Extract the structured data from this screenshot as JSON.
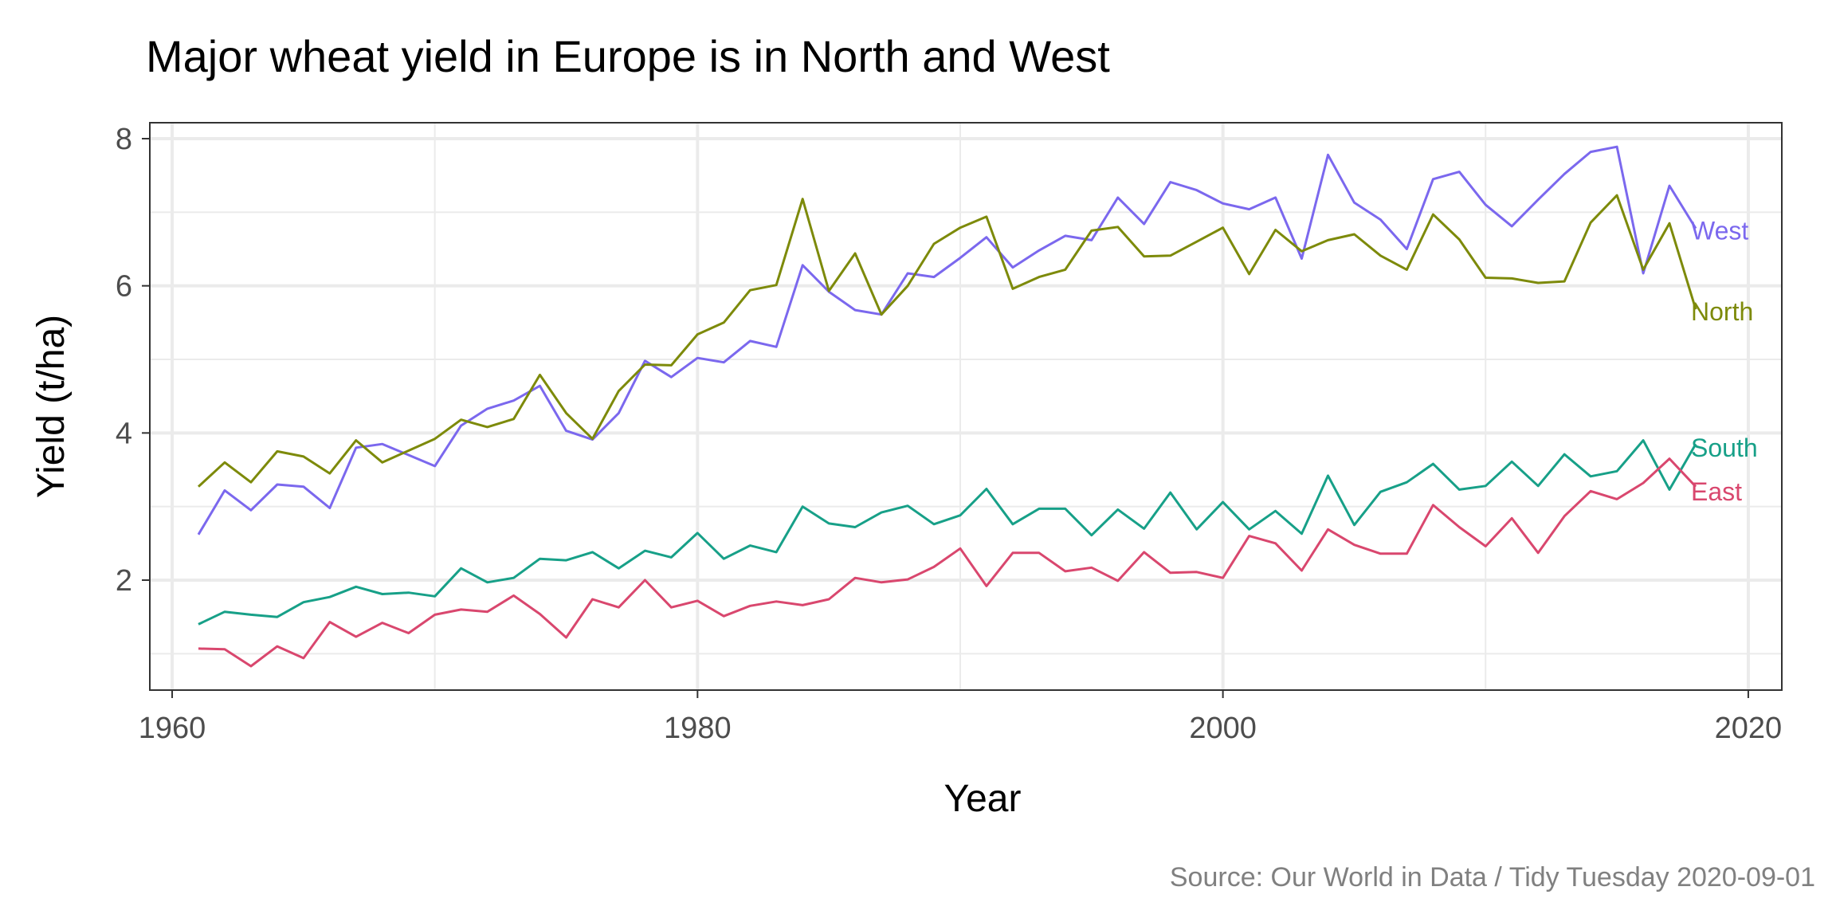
{
  "chart_data": {
    "type": "line",
    "title": "Major wheat yield in Europe is in North and West",
    "xlabel": "Year",
    "ylabel": "Yield (t/ha)",
    "caption": "Source: Our World in Data / Tidy Tuesday 2020-09-01",
    "xlim": [
      1958,
      2024
    ],
    "ylim": [
      0.5,
      8.25
    ],
    "xticks": [
      1960,
      1980,
      2000,
      2020
    ],
    "xtick_labels": [
      "1960",
      "1980",
      "2000",
      "2020"
    ],
    "yticks": [
      2,
      4,
      6,
      8
    ],
    "ytick_labels": [
      "2",
      "4",
      "6",
      "8"
    ],
    "grid": true,
    "legend": "direct labels at right end of lines",
    "x": [
      1961,
      1962,
      1963,
      1964,
      1965,
      1966,
      1967,
      1968,
      1969,
      1970,
      1971,
      1972,
      1973,
      1974,
      1975,
      1976,
      1977,
      1978,
      1979,
      1980,
      1981,
      1982,
      1983,
      1984,
      1985,
      1986,
      1987,
      1988,
      1989,
      1990,
      1991,
      1992,
      1993,
      1994,
      1995,
      1996,
      1997,
      1998,
      1999,
      2000,
      2001,
      2002,
      2003,
      2004,
      2005,
      2006,
      2007,
      2008,
      2009,
      2010,
      2011,
      2012,
      2013,
      2014,
      2015,
      2016,
      2017,
      2018
    ],
    "series": [
      {
        "name": "West",
        "color": "#7b68ee",
        "values": [
          2.62,
          3.22,
          2.95,
          3.3,
          3.27,
          2.98,
          3.8,
          3.85,
          3.7,
          3.55,
          4.1,
          4.33,
          4.44,
          4.64,
          4.03,
          3.91,
          4.27,
          4.98,
          4.76,
          5.02,
          4.96,
          5.25,
          5.17,
          6.28,
          5.92,
          5.67,
          5.61,
          6.17,
          6.12,
          6.38,
          6.66,
          6.25,
          6.48,
          6.68,
          6.62,
          7.2,
          6.84,
          7.41,
          7.3,
          7.12,
          7.04,
          7.2,
          6.37,
          7.78,
          7.13,
          6.9,
          6.5,
          7.45,
          7.55,
          7.1,
          6.81,
          7.17,
          7.52,
          7.82,
          7.89,
          6.17,
          7.36,
          6.78
        ]
      },
      {
        "name": "North",
        "color": "#7d8a0a",
        "values": [
          3.27,
          3.6,
          3.33,
          3.75,
          3.68,
          3.45,
          3.9,
          3.6,
          3.76,
          3.92,
          4.18,
          4.08,
          4.19,
          4.79,
          4.27,
          3.92,
          4.57,
          4.93,
          4.92,
          5.34,
          5.5,
          5.94,
          6.01,
          7.18,
          5.93,
          6.44,
          5.61,
          6.0,
          6.57,
          6.79,
          6.94,
          5.96,
          6.12,
          6.22,
          6.75,
          6.8,
          6.4,
          6.41,
          6.6,
          6.79,
          6.16,
          6.76,
          6.47,
          6.62,
          6.7,
          6.41,
          6.22,
          6.97,
          6.63,
          6.11,
          6.1,
          6.04,
          6.06,
          6.86,
          7.23,
          6.22,
          6.85,
          5.68
        ]
      },
      {
        "name": "South",
        "color": "#17a088",
        "values": [
          1.4,
          1.57,
          1.53,
          1.5,
          1.7,
          1.77,
          1.91,
          1.81,
          1.83,
          1.78,
          2.16,
          1.97,
          2.03,
          2.29,
          2.27,
          2.38,
          2.16,
          2.4,
          2.31,
          2.64,
          2.29,
          2.47,
          2.38,
          3.0,
          2.77,
          2.72,
          2.92,
          3.01,
          2.76,
          2.88,
          3.24,
          2.76,
          2.97,
          2.97,
          2.61,
          2.96,
          2.7,
          3.19,
          2.69,
          3.06,
          2.69,
          2.94,
          2.63,
          3.42,
          2.75,
          3.2,
          3.33,
          3.58,
          3.23,
          3.28,
          3.61,
          3.28,
          3.71,
          3.41,
          3.48,
          3.9,
          3.23,
          3.85
        ]
      },
      {
        "name": "East",
        "color": "#d9476e",
        "values": [
          1.07,
          1.06,
          0.83,
          1.1,
          0.94,
          1.43,
          1.23,
          1.42,
          1.28,
          1.53,
          1.6,
          1.57,
          1.79,
          1.54,
          1.22,
          1.74,
          1.63,
          2.0,
          1.63,
          1.72,
          1.51,
          1.65,
          1.71,
          1.66,
          1.74,
          2.03,
          1.97,
          2.01,
          2.18,
          2.43,
          1.92,
          2.37,
          2.37,
          2.12,
          2.17,
          1.99,
          2.38,
          2.1,
          2.11,
          2.03,
          2.6,
          2.5,
          2.13,
          2.69,
          2.48,
          2.36,
          2.36,
          3.02,
          2.72,
          2.46,
          2.84,
          2.37,
          2.87,
          3.21,
          3.1,
          3.32,
          3.65,
          3.27
        ]
      }
    ],
    "series_label_y": {
      "West": 6.75,
      "North": 5.65,
      "South": 3.8,
      "East": 3.2
    }
  }
}
